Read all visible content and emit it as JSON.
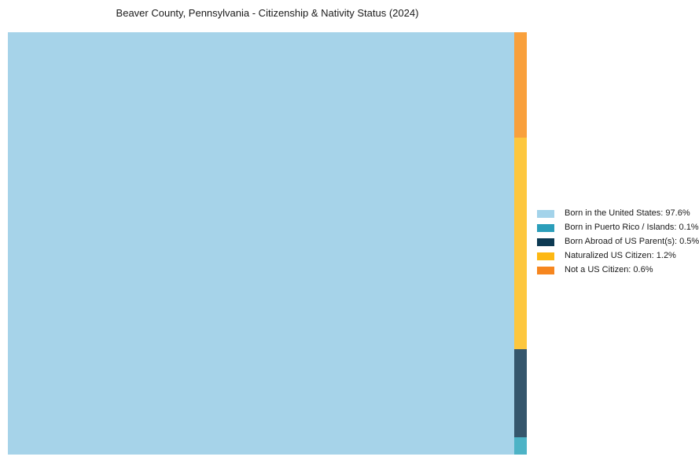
{
  "title": "Beaver County, Pennsylvania - Citizenship & Nativity Status (2024)",
  "chart_data": {
    "type": "treemap",
    "title": "Beaver County, Pennsylvania - Citizenship & Nativity Status (2024)",
    "categories": [
      "Born in the United States",
      "Born in Puerto Rico / Islands",
      "Born Abroad of US Parent(s)",
      "Naturalized US Citizen",
      "Not a US Citizen"
    ],
    "values": [
      97.6,
      0.1,
      0.5,
      1.2,
      0.6
    ],
    "unit": "%",
    "cell_colors": [
      "#A6D3E9",
      "#4DB3C6",
      "#35566C",
      "#FDC73E",
      "#F9A03C"
    ],
    "legend_colors": [
      "#A3D3EA",
      "#2B9EBA",
      "#0D3A53",
      "#FDB813",
      "#F6861F"
    ],
    "slugs": [
      "born-in-us",
      "born-in-puerto-rico-islands",
      "born-abroad-us-parents",
      "naturalized-us-citizen",
      "not-a-us-citizen"
    ],
    "layout": {
      "main_category_index": 0,
      "strip_order_top_to_bottom": [
        4,
        3,
        2,
        1
      ],
      "legend_position": "right-center",
      "grid": "off"
    }
  },
  "legend": {
    "items": [
      {
        "label": "Born in the United States: 97.6%"
      },
      {
        "label": "Born in Puerto Rico / Islands: 0.1%"
      },
      {
        "label": "Born Abroad of US Parent(s): 0.5%"
      },
      {
        "label": "Naturalized US Citizen: 1.2%"
      },
      {
        "label": "Not a US Citizen: 0.6%"
      }
    ]
  }
}
